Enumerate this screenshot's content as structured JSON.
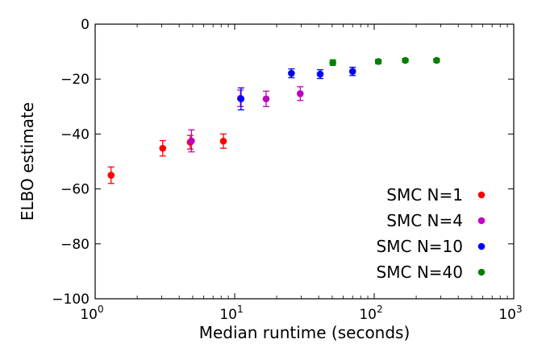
{
  "chart_data": {
    "type": "scatter",
    "xlabel": "Median runtime (seconds)",
    "ylabel": "ELBO estimate",
    "x_scale": "log",
    "xlim": [
      1,
      1000
    ],
    "ylim": [
      -100,
      0
    ],
    "x_ticks": [
      {
        "value": 1,
        "base": "10",
        "exp": "0"
      },
      {
        "value": 10,
        "base": "10",
        "exp": "1"
      },
      {
        "value": 100,
        "base": "10",
        "exp": "2"
      },
      {
        "value": 1000,
        "base": "10",
        "exp": "3"
      }
    ],
    "y_ticks": [
      {
        "value": 0,
        "label": "0"
      },
      {
        "value": -20,
        "label": "−20"
      },
      {
        "value": -40,
        "label": "−40"
      },
      {
        "value": -60,
        "label": "−60"
      },
      {
        "value": -80,
        "label": "−80"
      },
      {
        "value": -100,
        "label": "−100"
      }
    ],
    "grid": false,
    "legend_position": "bottom-right",
    "series": [
      {
        "name": "SMC N=1",
        "color": "#ff0000",
        "points": [
          {
            "x": 1.3,
            "y": -55.0,
            "err": 3.0
          },
          {
            "x": 3.05,
            "y": -45.2,
            "err": 2.8
          },
          {
            "x": 4.8,
            "y": -43.0,
            "err": 2.5
          },
          {
            "x": 8.3,
            "y": -42.6,
            "err": 2.6
          }
        ]
      },
      {
        "name": "SMC N=4",
        "color": "#bf00bf",
        "points": [
          {
            "x": 4.9,
            "y": -42.5,
            "err": 4.0
          },
          {
            "x": 11.0,
            "y": -27.0,
            "err": 3.0
          },
          {
            "x": 16.8,
            "y": -27.2,
            "err": 2.8
          },
          {
            "x": 29.5,
            "y": -25.3,
            "err": 2.5
          }
        ]
      },
      {
        "name": "SMC N=10",
        "color": "#0000ff",
        "points": [
          {
            "x": 11.1,
            "y": -27.2,
            "err": 4.0
          },
          {
            "x": 25.5,
            "y": -17.9,
            "err": 1.6
          },
          {
            "x": 41.0,
            "y": -18.2,
            "err": 1.6
          },
          {
            "x": 70.0,
            "y": -17.2,
            "err": 1.5
          }
        ]
      },
      {
        "name": "SMC N=40",
        "color": "#007f00",
        "points": [
          {
            "x": 50.5,
            "y": -14.0,
            "err": 1.0
          },
          {
            "x": 107.0,
            "y": -13.6,
            "err": 0.8
          },
          {
            "x": 167.0,
            "y": -13.2,
            "err": 0.7
          },
          {
            "x": 280.0,
            "y": -13.2,
            "err": 0.7
          }
        ]
      }
    ]
  }
}
